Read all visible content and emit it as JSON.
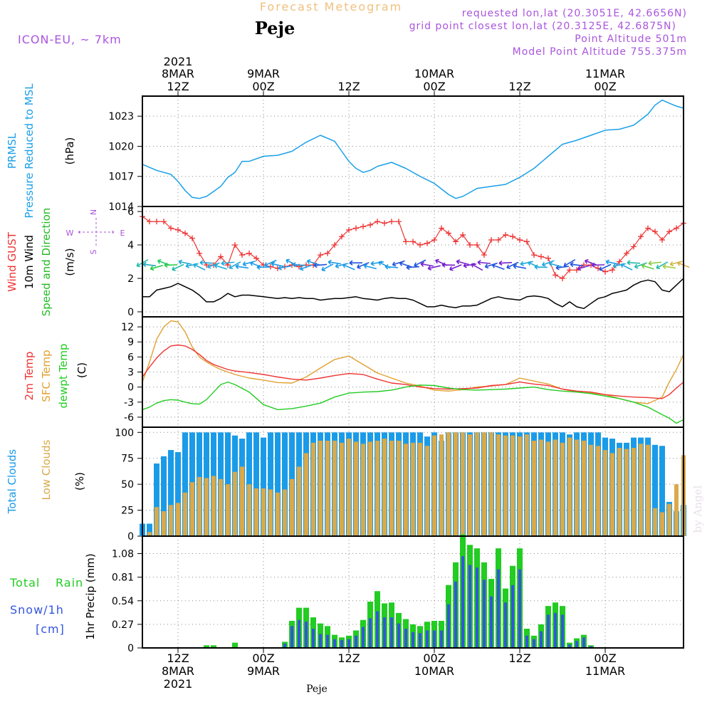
{
  "header": {
    "title": "Forecast Meteogram",
    "location": "Peje",
    "model": "ICON-EU, ~ 7km",
    "requested": "requested lon,lat (20.3051E, 42.6656N)",
    "gridpoint": "grid point closest lon,lat (20.3125E, 42.6875N)",
    "altitude": "Point Altitude 501m",
    "model_altitude": "Model Point Altitude 755.375m",
    "footer_location": "Peje",
    "credit": "by Angel"
  },
  "colors": {
    "pressure": "#1aa0e8",
    "gust": "#ee3333",
    "wind": "#000000",
    "label_green": "#22bb22",
    "temp2m": "#ee3333",
    "sfc": "#e0a030",
    "dew": "#22cc22",
    "total_clouds": "#1a9be8",
    "low_clouds": "#d9a94a",
    "rain": "#22cc22",
    "snow": "#3355dd",
    "purple": "#aa55dd",
    "title": "#f0c080"
  },
  "time_axis": {
    "top": [
      {
        "t": 0,
        "l1": "2021",
        "l2": "8MAR",
        "l3": "12Z"
      },
      {
        "t": 12,
        "l1": "",
        "l2": "9MAR",
        "l3": "00Z"
      },
      {
        "t": 24,
        "l1": "",
        "l2": "",
        "l3": "12Z"
      },
      {
        "t": 36,
        "l1": "",
        "l2": "10MAR",
        "l3": "00Z"
      },
      {
        "t": 48,
        "l1": "",
        "l2": "",
        "l3": "12Z"
      },
      {
        "t": 60,
        "l1": "",
        "l2": "11MAR",
        "l3": "00Z"
      }
    ],
    "bottom": [
      {
        "t": 0,
        "l1": "12Z",
        "l2": "8MAR",
        "l3": "2021"
      },
      {
        "t": 12,
        "l1": "00Z",
        "l2": "9MAR",
        "l3": ""
      },
      {
        "t": 24,
        "l1": "12Z",
        "l2": "",
        "l3": ""
      },
      {
        "t": 36,
        "l1": "00Z",
        "l2": "10MAR",
        "l3": ""
      },
      {
        "t": 48,
        "l1": "12Z",
        "l2": "",
        "l3": ""
      },
      {
        "t": 60,
        "l1": "00Z",
        "l2": "11MAR",
        "l3": ""
      }
    ]
  },
  "chart_data": [
    {
      "type": "line",
      "title": "PRMSL Pressure Reduced to MSL",
      "label_lines": [
        "PRMSL",
        "Pressure Reduced to MSL"
      ],
      "ylabel": "(hPa)",
      "ylim": [
        1014,
        1025
      ],
      "yticks": [
        1014,
        1017,
        1020,
        1023
      ],
      "tmin": -5,
      "tmax": 71,
      "x": [
        -5,
        -3,
        -1,
        0,
        1,
        2,
        3,
        4,
        5,
        6,
        7,
        8,
        9,
        10,
        12,
        14,
        16,
        18,
        20,
        22,
        23,
        24,
        25,
        26,
        27,
        28,
        30,
        32,
        34,
        36,
        38,
        39,
        40,
        42,
        44,
        46,
        48,
        50,
        52,
        54,
        56,
        58,
        60,
        62,
        64,
        66,
        67,
        68,
        69,
        70,
        71
      ],
      "values": [
        1018.2,
        1017.6,
        1017.2,
        1016.5,
        1015.6,
        1014.9,
        1014.8,
        1015.0,
        1015.5,
        1016.0,
        1016.9,
        1017.4,
        1018.5,
        1018.5,
        1019.0,
        1019.1,
        1019.5,
        1020.4,
        1021.1,
        1020.5,
        1019.5,
        1018.5,
        1017.8,
        1017.4,
        1017.6,
        1018.0,
        1018.4,
        1017.8,
        1017.0,
        1016.3,
        1015.2,
        1014.8,
        1015.0,
        1015.8,
        1016.0,
        1016.2,
        1016.9,
        1017.8,
        1019.0,
        1020.2,
        1020.6,
        1021.1,
        1021.6,
        1021.7,
        1022.1,
        1023.2,
        1024.1,
        1024.6,
        1024.3,
        1024.0,
        1023.8
      ],
      "series": [
        {
          "name": "PRMSL",
          "values": "see values"
        }
      ]
    },
    {
      "type": "line",
      "title": "Wind GUST / 10m Wind Speed and Direction",
      "label_gust": "Wind GUST",
      "label_wind": "10m Wind",
      "label_dir": "Speed and Direction",
      "ylabel": "(m/s)",
      "ylim": [
        -0.3,
        6.3
      ],
      "yticks": [
        0,
        2,
        4,
        6
      ],
      "compass": {
        "n": "N",
        "s": "S",
        "e": "E",
        "w": "W"
      },
      "x": [
        -5,
        -4,
        -3,
        -2,
        -1,
        0,
        1,
        2,
        3,
        4,
        5,
        6,
        7,
        8,
        9,
        10,
        11,
        12,
        13,
        14,
        15,
        16,
        17,
        18,
        19,
        20,
        21,
        22,
        23,
        24,
        25,
        26,
        27,
        28,
        29,
        30,
        31,
        32,
        33,
        34,
        35,
        36,
        37,
        38,
        39,
        40,
        41,
        42,
        43,
        44,
        45,
        46,
        47,
        48,
        49,
        50,
        51,
        52,
        53,
        54,
        55,
        56,
        57,
        58,
        59,
        60,
        61,
        62,
        63,
        64,
        65,
        66,
        67,
        68,
        69,
        70,
        71
      ],
      "gust": [
        5.7,
        5.4,
        5.4,
        5.4,
        5.0,
        4.9,
        4.7,
        4.4,
        3.5,
        2.8,
        2.8,
        3.3,
        2.8,
        4.0,
        3.4,
        3.5,
        3.2,
        2.8,
        2.7,
        2.6,
        2.7,
        2.8,
        2.7,
        2.8,
        2.8,
        3.4,
        3.5,
        4.0,
        4.5,
        4.9,
        5.0,
        5.1,
        5.2,
        5.4,
        5.3,
        5.4,
        5.4,
        4.2,
        4.2,
        4.0,
        4.1,
        4.3,
        5.0,
        4.7,
        4.2,
        4.6,
        4.0,
        4.0,
        3.4,
        4.3,
        4.3,
        4.6,
        4.5,
        4.3,
        4.2,
        3.4,
        3.3,
        3.2,
        2.2,
        2.0,
        2.5,
        2.5,
        2.8,
        2.8,
        2.6,
        2.4,
        2.5,
        3.0,
        3.5,
        3.9,
        4.5,
        5.0,
        4.8,
        4.3,
        4.8,
        5.0,
        5.3
      ],
      "wind": [
        0.9,
        0.9,
        1.3,
        1.4,
        1.5,
        1.7,
        1.5,
        1.3,
        1.0,
        0.6,
        0.6,
        0.8,
        1.1,
        0.9,
        1.0,
        1.0,
        0.95,
        0.9,
        0.85,
        0.8,
        0.85,
        0.8,
        0.85,
        0.8,
        0.8,
        0.7,
        0.75,
        0.8,
        0.8,
        0.85,
        0.9,
        0.8,
        0.75,
        0.7,
        0.8,
        0.85,
        0.8,
        0.8,
        0.7,
        0.5,
        0.3,
        0.3,
        0.4,
        0.3,
        0.25,
        0.35,
        0.35,
        0.4,
        0.6,
        0.8,
        0.9,
        0.8,
        0.75,
        0.7,
        0.9,
        0.95,
        0.9,
        0.8,
        0.5,
        0.3,
        0.6,
        0.3,
        0.2,
        0.5,
        0.8,
        0.9,
        1.1,
        1.2,
        1.3,
        1.6,
        1.8,
        1.9,
        1.8,
        1.3,
        1.2,
        1.6,
        2.0
      ],
      "wind_dir_color": [
        "#22bbaa",
        "#22aabb",
        "#22cc44",
        "#22cc66",
        "#22cc44",
        "#22bbaa",
        "#22aacc",
        "#22aadd",
        "#22aadd",
        "#22aadd",
        "#22aadd",
        "#22aadd",
        "#22aadd",
        "#22aadd",
        "#1a9be8",
        "#1a9be8",
        "#1a9be8",
        "#1a9be8",
        "#1a9be8",
        "#1a9be8",
        "#1a9be8",
        "#1a9be8",
        "#1a9be8",
        "#1a9be8",
        "#1a9be8",
        "#2255dd",
        "#1a9be8",
        "#1a9be8",
        "#1a9be8",
        "#1a9be8",
        "#2255dd",
        "#2255dd",
        "#1a9be8",
        "#1a9be8",
        "#1a9be8",
        "#1a9be8",
        "#2255dd",
        "#2255dd",
        "#2255dd",
        "#2255dd",
        "#7722cc",
        "#7722cc",
        "#7722cc",
        "#7722cc",
        "#7722cc",
        "#7722cc",
        "#7722cc",
        "#7722cc",
        "#7722cc",
        "#2255dd",
        "#2255dd",
        "#7722cc",
        "#2255dd",
        "#2255dd",
        "#22aadd",
        "#22aadd",
        "#22aadd",
        "#22aadd",
        "#22aadd",
        "#2255dd",
        "#2255dd",
        "#2255dd",
        "#7722cc",
        "#7722cc",
        "#7722cc",
        "#2255dd",
        "#1a9be8",
        "#22aadd",
        "#22aadd",
        "#22bbaa",
        "#22bbaa",
        "#66cc44",
        "#88cc44",
        "#22bbaa",
        "#aacc44",
        "#ccbb44",
        "#ddaa44"
      ]
    },
    {
      "type": "line",
      "title": "Temperatures",
      "label_lines": [
        "2m Temp",
        "SFC Temp",
        "dewpt Temp"
      ],
      "ylabel": "(C)",
      "ylim": [
        -8,
        14
      ],
      "yticks": [
        -6,
        -3,
        0,
        3,
        6,
        9,
        12
      ],
      "x": [
        -5,
        -4,
        -3,
        -2,
        -1,
        0,
        1,
        2,
        3,
        4,
        5,
        6,
        7,
        8,
        10,
        12,
        14,
        16,
        18,
        20,
        22,
        24,
        26,
        28,
        30,
        32,
        34,
        36,
        38,
        40,
        42,
        44,
        46,
        48,
        50,
        52,
        54,
        56,
        58,
        60,
        62,
        64,
        66,
        68,
        69,
        70,
        71
      ],
      "temp2m": [
        2.0,
        4.0,
        5.8,
        7.2,
        8.2,
        8.4,
        8.2,
        7.5,
        6.5,
        5.3,
        4.5,
        4.0,
        3.5,
        3.2,
        2.9,
        2.5,
        2.0,
        1.6,
        1.4,
        1.8,
        2.3,
        2.7,
        2.5,
        1.6,
        0.8,
        0.5,
        0.0,
        -0.3,
        -0.4,
        -0.3,
        -0.2,
        0.3,
        0.5,
        1.0,
        0.6,
        0.3,
        -0.4,
        -0.8,
        -1.0,
        -1.5,
        -1.8,
        -2.0,
        -2.1,
        -2.3,
        -1.5,
        -0.2,
        1.0
      ],
      "sfc": [
        1.0,
        5.0,
        9.5,
        12.0,
        13.2,
        13.0,
        11.0,
        8.0,
        6.0,
        5.0,
        4.2,
        3.5,
        3.0,
        2.5,
        1.8,
        1.4,
        0.9,
        0.8,
        2.0,
        3.8,
        5.5,
        6.2,
        4.5,
        2.8,
        1.8,
        0.8,
        0.2,
        -0.6,
        -0.8,
        -0.5,
        0.0,
        0.2,
        0.5,
        1.8,
        1.2,
        0.6,
        -0.4,
        -1.0,
        -1.2,
        -1.5,
        -2.3,
        -3.0,
        -3.3,
        -2.0,
        1.0,
        3.5,
        6.5
      ],
      "dew": [
        -4.5,
        -4.0,
        -3.2,
        -2.7,
        -2.5,
        -2.6,
        -3.0,
        -3.3,
        -3.4,
        -2.5,
        -1.0,
        0.5,
        1.0,
        0.5,
        -1.0,
        -3.5,
        -4.5,
        -4.3,
        -3.8,
        -3.2,
        -2.0,
        -1.2,
        -1.0,
        -0.9,
        -0.6,
        0.0,
        0.4,
        0.3,
        -0.2,
        -0.5,
        -0.6,
        -0.5,
        -0.4,
        -0.2,
        0.0,
        -0.5,
        -0.8,
        -1.0,
        -1.3,
        -1.8,
        -2.3,
        -3.0,
        -4.0,
        -5.5,
        -6.2,
        -7.2,
        -6.5
      ]
    },
    {
      "type": "bar",
      "title": "Clouds",
      "label_total": "Total Clouds",
      "label_low": "Low Clouds",
      "ylabel": "(%)",
      "ylim": [
        0,
        105
      ],
      "yticks": [
        0,
        25,
        50,
        75,
        100
      ],
      "x": [
        -5,
        -4,
        -3,
        -2,
        -1,
        0,
        1,
        2,
        3,
        4,
        5,
        6,
        7,
        8,
        9,
        10,
        11,
        12,
        13,
        14,
        15,
        16,
        17,
        18,
        19,
        20,
        21,
        22,
        23,
        24,
        25,
        26,
        27,
        28,
        29,
        30,
        31,
        32,
        33,
        34,
        35,
        36,
        37,
        38,
        39,
        40,
        41,
        42,
        43,
        44,
        45,
        46,
        47,
        48,
        49,
        50,
        51,
        52,
        53,
        54,
        55,
        56,
        57,
        58,
        59,
        60,
        61,
        62,
        63,
        64,
        65,
        66,
        67,
        68,
        69,
        70,
        71
      ],
      "total": [
        12,
        12,
        70,
        77,
        83,
        81,
        100,
        100,
        100,
        100,
        100,
        100,
        100,
        97,
        94,
        100,
        100,
        95,
        100,
        100,
        100,
        100,
        100,
        100,
        100,
        100,
        100,
        100,
        100,
        100,
        100,
        100,
        100,
        100,
        100,
        100,
        100,
        100,
        100,
        100,
        96,
        100,
        92,
        100,
        100,
        100,
        100,
        100,
        100,
        100,
        100,
        100,
        100,
        100,
        100,
        100,
        100,
        100,
        100,
        100,
        98,
        100,
        100,
        100,
        100,
        95,
        94,
        90,
        90,
        95,
        95,
        95,
        88,
        87,
        33,
        24,
        30
      ],
      "low": [
        0,
        4,
        28,
        24,
        30,
        32,
        42,
        52,
        57,
        56,
        58,
        55,
        50,
        62,
        67,
        50,
        46,
        46,
        45,
        42,
        45,
        55,
        67,
        80,
        90,
        92,
        92,
        92,
        90,
        94,
        91,
        89,
        91,
        92,
        94,
        92,
        92,
        89,
        90,
        90,
        87,
        97,
        98,
        100,
        100,
        100,
        98,
        100,
        100,
        100,
        98,
        97,
        97,
        96,
        98,
        92,
        93,
        91,
        93,
        90,
        95,
        93,
        92,
        88,
        87,
        83,
        80,
        85,
        84,
        85,
        89,
        88,
        27,
        23,
        31,
        50,
        78
      ]
    },
    {
      "type": "bar",
      "title": "1hr Precip (mm)",
      "label_total": "Total",
      "label_rain": "Rain",
      "label_snow": "Snow/1h",
      "label_unit": "[cm]",
      "ylabel": "1hr Precip (mm)",
      "ylim": [
        0,
        1.28
      ],
      "yticks": [
        0,
        0.27,
        0.54,
        0.81,
        1.08
      ],
      "ytick_labels": [
        "0",
        "0.27",
        "0.54",
        "0.81",
        "1.08"
      ],
      "x": [
        -5,
        -4,
        -3,
        -2,
        -1,
        0,
        1,
        2,
        3,
        4,
        5,
        6,
        7,
        8,
        9,
        10,
        11,
        12,
        13,
        14,
        15,
        16,
        17,
        18,
        19,
        20,
        21,
        22,
        23,
        24,
        25,
        26,
        27,
        28,
        29,
        30,
        31,
        32,
        33,
        34,
        35,
        36,
        37,
        38,
        39,
        40,
        41,
        42,
        43,
        44,
        45,
        46,
        47,
        48,
        49,
        50,
        51,
        52,
        53,
        54,
        55,
        56,
        57,
        58,
        59,
        60,
        61,
        62,
        63,
        64,
        65,
        66,
        67,
        68,
        69,
        70,
        71
      ],
      "total": [
        0,
        0,
        0,
        0,
        0,
        0,
        0,
        0,
        0,
        0.03,
        0.03,
        0,
        0,
        0.06,
        0,
        0,
        0,
        0,
        0,
        0,
        0.07,
        0.31,
        0.46,
        0.46,
        0.35,
        0.28,
        0.25,
        0.15,
        0.12,
        0.14,
        0.2,
        0.32,
        0.53,
        0.65,
        0.51,
        0.52,
        0.4,
        0.33,
        0.27,
        0.25,
        0.3,
        0.31,
        0.31,
        0.72,
        0.98,
        1.3,
        1.18,
        1.14,
        0.98,
        0.79,
        1.14,
        0.68,
        0.94,
        1.14,
        0.22,
        0.14,
        0.27,
        0.48,
        0.52,
        0.48,
        0.06,
        0.11,
        0.15,
        0.03,
        0,
        0,
        0,
        0,
        0,
        0,
        0,
        0,
        0,
        0,
        0,
        0,
        0
      ],
      "snow": [
        0,
        0,
        0,
        0,
        0,
        0,
        0,
        0,
        0,
        0,
        0,
        0,
        0,
        0,
        0,
        0,
        0,
        0,
        0,
        0,
        0.05,
        0.25,
        0.32,
        0.3,
        0.22,
        0.16,
        0.15,
        0.1,
        0.09,
        0.1,
        0.14,
        0.24,
        0.34,
        0.42,
        0.35,
        0.35,
        0.28,
        0.22,
        0.18,
        0.17,
        0.2,
        0.2,
        0.2,
        0.5,
        0.76,
        1.05,
        0.95,
        0.92,
        0.78,
        0.59,
        0.9,
        0.52,
        0.72,
        0.9,
        0.14,
        0.1,
        0.19,
        0.38,
        0.4,
        0.38,
        0.04,
        0.08,
        0.12,
        0.02,
        0,
        0,
        0,
        0,
        0,
        0,
        0,
        0,
        0,
        0,
        0,
        0,
        0
      ]
    }
  ]
}
